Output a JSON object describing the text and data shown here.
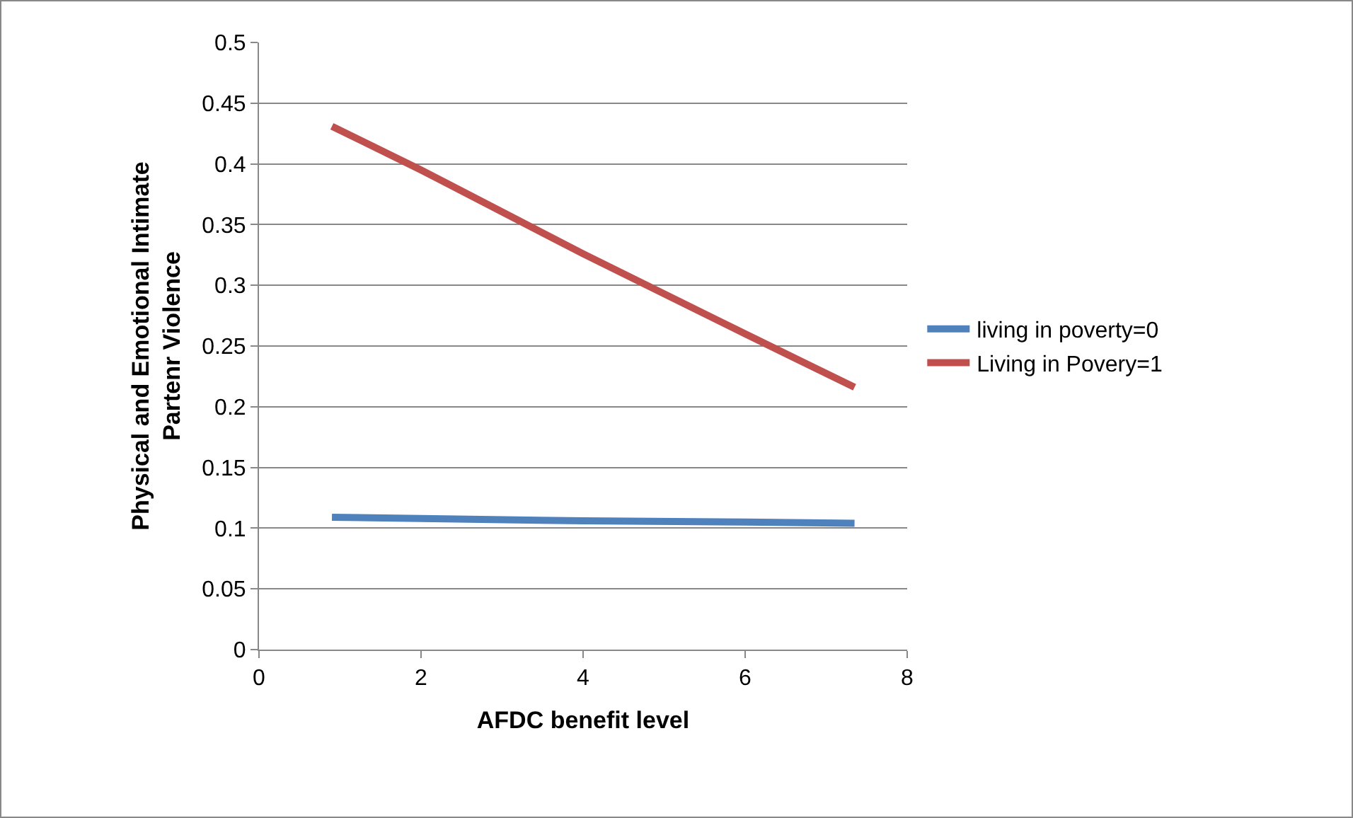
{
  "chart_data": {
    "type": "line",
    "xlabel": "AFDC benefit level",
    "ylabel": "Physical and Emotional Intimate Partenr Violence",
    "series": [
      {
        "name": "living in poverty=0",
        "color": "#4f81bd",
        "x": [
          0.9,
          2,
          4,
          6,
          7.35
        ],
        "values": [
          0.109,
          0.108,
          0.106,
          0.105,
          0.104
        ]
      },
      {
        "name": "Living in Povery=1",
        "color": "#c0504d",
        "x": [
          0.9,
          2,
          4,
          6,
          7.35
        ],
        "values": [
          0.431,
          0.395,
          0.326,
          0.26,
          0.216
        ]
      }
    ],
    "xlim": [
      0,
      8
    ],
    "xticks": [
      0,
      2,
      4,
      6,
      8
    ],
    "ylim": [
      0,
      0.5
    ],
    "yticks": [
      0,
      0.05,
      0.1,
      0.15,
      0.2,
      0.25,
      0.3,
      0.35,
      0.4,
      0.45,
      0.5
    ],
    "grid": "y",
    "legend": "right",
    "marker": "none",
    "line_style": "solid"
  }
}
